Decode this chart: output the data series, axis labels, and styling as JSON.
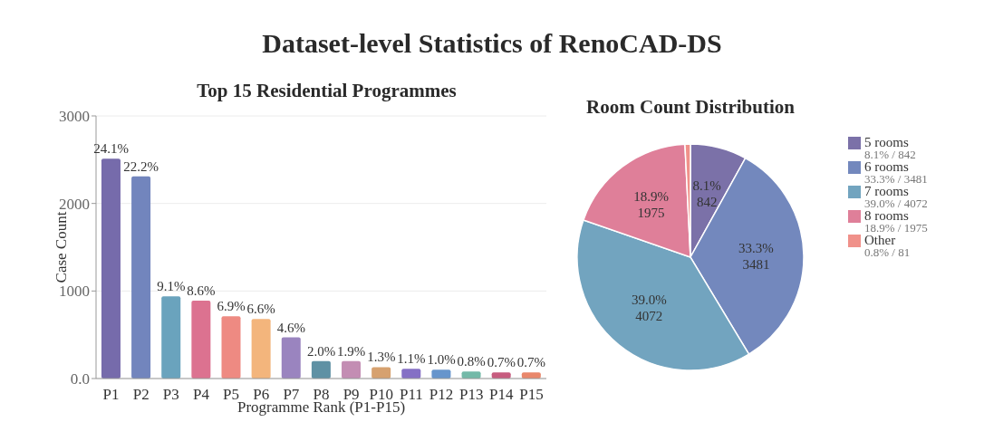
{
  "chart_data": [
    {
      "type": "bar",
      "title": "Dataset-level Statistics of RenoCAD-DS",
      "subtitle": "Top 15 Residential Programmes",
      "xlabel": "Programme Rank (P1-P15)",
      "ylabel": "Case Count",
      "categories": [
        "P1",
        "P2",
        "P3",
        "P4",
        "P5",
        "P6",
        "P7",
        "P8",
        "P9",
        "P10",
        "P11",
        "P12",
        "P13",
        "P14",
        "P15"
      ],
      "values": [
        2510,
        2310,
        940,
        890,
        710,
        680,
        470,
        200,
        200,
        130,
        110,
        100,
        80,
        70,
        70
      ],
      "colors": [
        "#766bab",
        "#7285bd",
        "#6aa3bd",
        "#dc7290",
        "#ee8a82",
        "#f3b57c",
        "#9a84bf",
        "#5f91a4",
        "#c38db3",
        "#d6a16f",
        "#8570c5",
        "#6795cc",
        "#74b9a8",
        "#c75c7f",
        "#e9876b"
      ],
      "annotations": [
        {
          "text": "24.1%",
          "x": "P1",
          "y": 2510
        },
        {
          "text": "22.2%",
          "x": "P2",
          "y": 2310
        },
        {
          "text": "9.1%",
          "x": "P3",
          "y": 940
        },
        {
          "text": "8.6%",
          "x": "P4",
          "y": 890
        },
        {
          "text": "6.9%",
          "x": "P5",
          "y": 710
        },
        {
          "text": "6.6%",
          "x": "P6",
          "y": 680
        },
        {
          "text": "4.6%",
          "x": "P7",
          "y": 470
        },
        {
          "text": "2.0%",
          "x": "P8",
          "y": 200
        },
        {
          "text": "1.9%",
          "x": "P9",
          "y": 200
        },
        {
          "text": "1.3%",
          "x": "P10",
          "y": 130
        },
        {
          "text": "1.1%",
          "x": "P11",
          "y": 110
        },
        {
          "text": "1.0%",
          "x": "P12",
          "y": 100
        },
        {
          "text": "0.8%",
          "x": "P13",
          "y": 80
        },
        {
          "text": "0.7%",
          "x": "P14",
          "y": 70
        },
        {
          "text": "0.7%",
          "x": "P15",
          "y": 70
        }
      ],
      "ylim": [
        0,
        3000
      ],
      "yticks": [
        {
          "value": 0,
          "label": "0.0"
        },
        1000,
        2000,
        3000
      ],
      "grid": "y"
    },
    {
      "type": "pie",
      "title": "Room Count Distribution",
      "categories": [
        "5 rooms",
        "6 rooms",
        "7 rooms",
        "8 rooms",
        "Other"
      ],
      "values": [
        842,
        3481,
        4072,
        1975,
        81
      ],
      "colors": [
        "#7b71a8",
        "#7388bd",
        "#72a4bf",
        "#df7f99",
        "#f0918a"
      ],
      "value_labels": [
        "8.1%\n842",
        "33.3%\n3481",
        "39.0%\n4072",
        "18.9%\n1975",
        null
      ],
      "annotations": [
        "8.1% / 842",
        "33.3% / 3481",
        "39.0% / 4072",
        "18.9% / 1975",
        "0.8% / 81"
      ],
      "legend": "right"
    }
  ]
}
